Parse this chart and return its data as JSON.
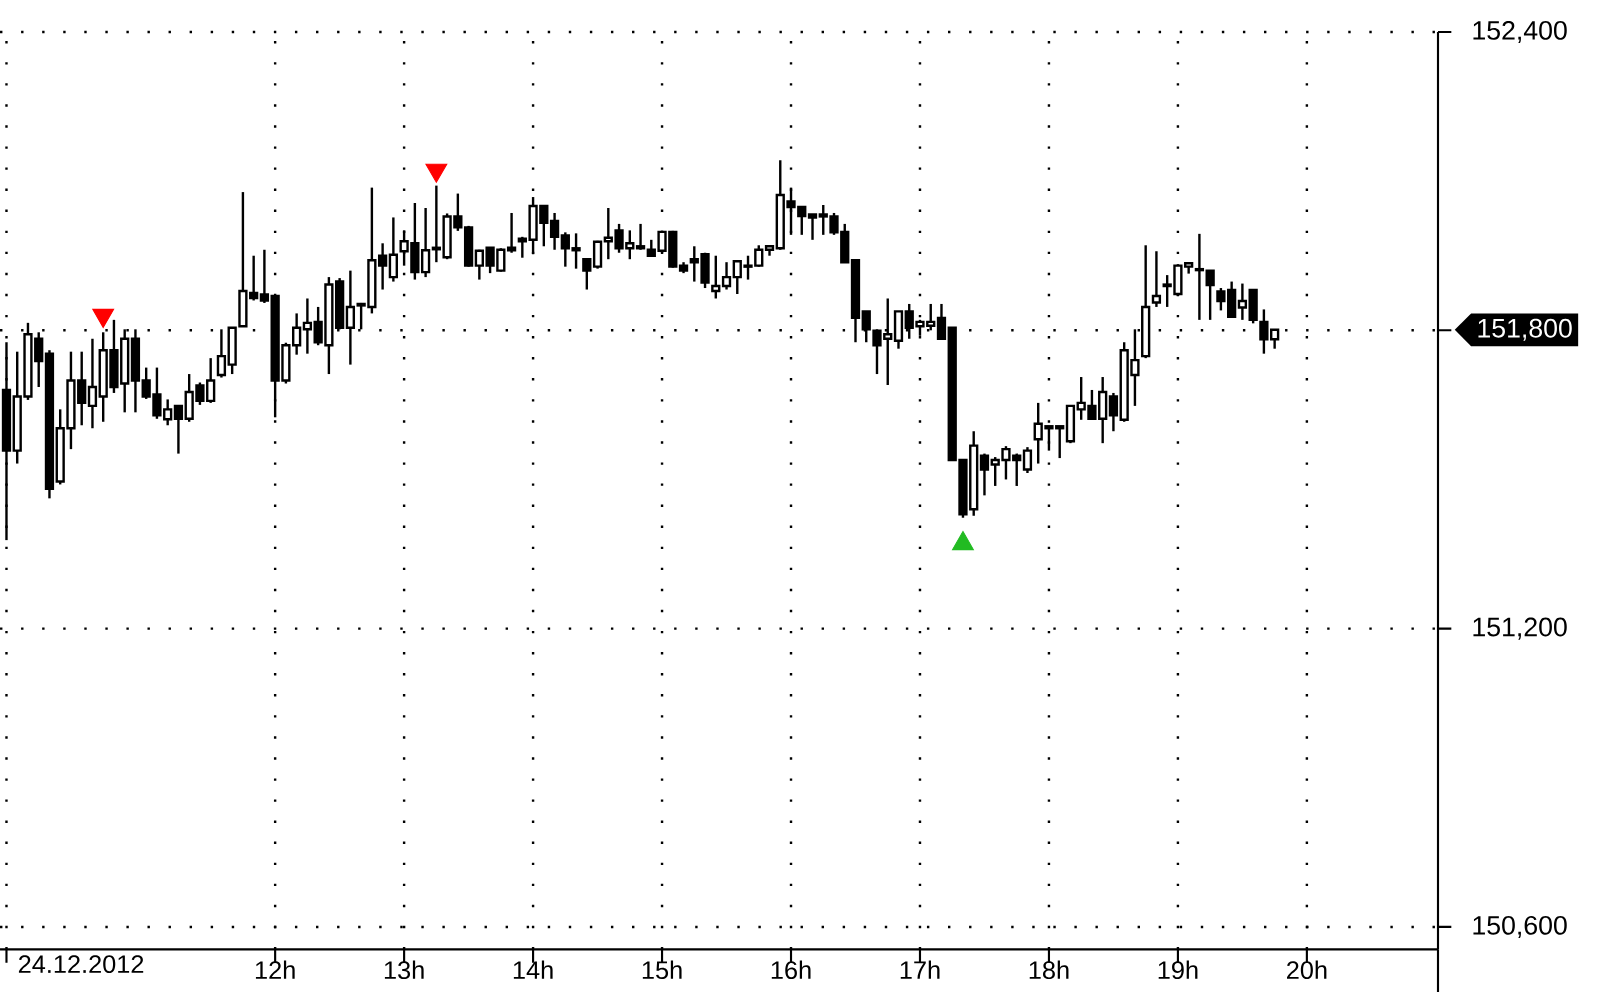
{
  "chart_data": {
    "type": "candlestick",
    "color": "#000000",
    "x": [
      "2012-12-24T09:55",
      "2012-12-24T10:00",
      "2012-12-24T10:05",
      "2012-12-24T10:10",
      "2012-12-24T10:15",
      "2012-12-24T10:20",
      "2012-12-24T10:25",
      "2012-12-24T10:30",
      "2012-12-24T10:35",
      "2012-12-24T10:40",
      "2012-12-24T10:45",
      "2012-12-24T10:50",
      "2012-12-24T10:55",
      "2012-12-24T11:00",
      "2012-12-24T11:05",
      "2012-12-24T11:10",
      "2012-12-24T11:15",
      "2012-12-24T11:20",
      "2012-12-24T11:25",
      "2012-12-24T11:30",
      "2012-12-24T11:35",
      "2012-12-24T11:40",
      "2012-12-24T11:45",
      "2012-12-24T11:50",
      "2012-12-24T11:55",
      "2012-12-24T12:00",
      "2012-12-24T12:05",
      "2012-12-24T12:10",
      "2012-12-24T12:15",
      "2012-12-24T12:20",
      "2012-12-24T12:25",
      "2012-12-24T12:30",
      "2012-12-24T12:35",
      "2012-12-24T12:40",
      "2012-12-24T12:45",
      "2012-12-24T12:50",
      "2012-12-24T12:55",
      "2012-12-24T13:00",
      "2012-12-24T13:05",
      "2012-12-24T13:10",
      "2012-12-24T13:15",
      "2012-12-24T13:20",
      "2012-12-24T13:25",
      "2012-12-24T13:30",
      "2012-12-24T13:35",
      "2012-12-24T13:40",
      "2012-12-24T13:45",
      "2012-12-24T13:50",
      "2012-12-24T13:55",
      "2012-12-24T14:00",
      "2012-12-24T14:05",
      "2012-12-24T14:10",
      "2012-12-24T14:15",
      "2012-12-24T14:20",
      "2012-12-24T14:25",
      "2012-12-24T14:30",
      "2012-12-24T14:35",
      "2012-12-24T14:40",
      "2012-12-24T14:45",
      "2012-12-24T14:50",
      "2012-12-24T14:55",
      "2012-12-24T15:00",
      "2012-12-24T15:05",
      "2012-12-24T15:10",
      "2012-12-24T15:15",
      "2012-12-24T15:20",
      "2012-12-24T15:25",
      "2012-12-24T15:30",
      "2012-12-24T15:35",
      "2012-12-24T15:40",
      "2012-12-24T15:45",
      "2012-12-24T15:50",
      "2012-12-24T15:55",
      "2012-12-24T16:00",
      "2012-12-24T16:05",
      "2012-12-24T16:10",
      "2012-12-24T16:15",
      "2012-12-24T16:20",
      "2012-12-24T16:25",
      "2012-12-24T16:30",
      "2012-12-24T16:35",
      "2012-12-24T16:40",
      "2012-12-24T16:45",
      "2012-12-24T16:50",
      "2012-12-24T16:55",
      "2012-12-24T17:00",
      "2012-12-24T17:05",
      "2012-12-24T17:10",
      "2012-12-24T17:15",
      "2012-12-24T17:20",
      "2012-12-24T17:25",
      "2012-12-24T17:30",
      "2012-12-24T17:35",
      "2012-12-24T17:40",
      "2012-12-24T17:45",
      "2012-12-24T17:50",
      "2012-12-24T17:55",
      "2012-12-24T18:00",
      "2012-12-24T18:05",
      "2012-12-24T18:10",
      "2012-12-24T18:15",
      "2012-12-24T18:20",
      "2012-12-24T18:25",
      "2012-12-24T18:30",
      "2012-12-24T18:35",
      "2012-12-24T18:40",
      "2012-12-24T18:45",
      "2012-12-24T18:50",
      "2012-12-24T18:55",
      "2012-12-24T19:00",
      "2012-12-24T19:05",
      "2012-12-24T19:10",
      "2012-12-24T19:15",
      "2012-12-24T19:20",
      "2012-12-24T19:25",
      "2012-12-24T19:30",
      "2012-12-24T19:35",
      "2012-12-24T19:40",
      "2012-12-24T19:45"
    ],
    "ohlc": [
      [
        151680,
        151776,
        151378,
        151558
      ],
      [
        151558,
        151757,
        151532,
        151667
      ],
      [
        151667,
        151815,
        151660,
        151792
      ],
      [
        151783,
        151796,
        151686,
        151738
      ],
      [
        151753,
        151760,
        151462,
        151481
      ],
      [
        151496,
        151641,
        151490,
        151603
      ],
      [
        151603,
        151757,
        151561,
        151699
      ],
      [
        151699,
        151757,
        151609,
        151654
      ],
      [
        151648,
        151783,
        151603,
        151686
      ],
      [
        151667,
        151796,
        151616,
        151760
      ],
      [
        151760,
        151821,
        151674,
        151686
      ],
      [
        151693,
        151802,
        151635,
        151783
      ],
      [
        151783,
        151802,
        151635,
        151699
      ],
      [
        151699,
        151725,
        151662,
        151667
      ],
      [
        151671,
        151725,
        151622,
        151629
      ],
      [
        151621,
        151661,
        151609,
        151641
      ],
      [
        151648,
        151648,
        151552,
        151622
      ],
      [
        151622,
        151712,
        151616,
        151676
      ],
      [
        151689,
        151695,
        151650,
        151658
      ],
      [
        151658,
        151744,
        151654,
        151699
      ],
      [
        151710,
        151802,
        151705,
        151748
      ],
      [
        151731,
        151805,
        151712,
        151805
      ],
      [
        151808,
        152078,
        151808,
        151879
      ],
      [
        151875,
        151950,
        151860,
        151865
      ],
      [
        151872,
        151962,
        151855,
        151860
      ],
      [
        151869,
        151869,
        151625,
        151699
      ],
      [
        151699,
        151775,
        151693,
        151770
      ],
      [
        151770,
        151834,
        151751,
        151805
      ],
      [
        151802,
        151864,
        151753,
        151815
      ],
      [
        151817,
        151847,
        151770,
        151776
      ],
      [
        151770,
        151907,
        151712,
        151892
      ],
      [
        151898,
        151905,
        151802,
        151805
      ],
      [
        151805,
        151920,
        151731,
        151847
      ],
      [
        151850,
        151855,
        151802,
        151853
      ],
      [
        151847,
        152087,
        151834,
        151941
      ],
      [
        151950,
        151975,
        151882,
        151930
      ],
      [
        151907,
        152027,
        151898,
        151952
      ],
      [
        151959,
        152001,
        151930,
        151979
      ],
      [
        151975,
        152056,
        151902,
        151917
      ],
      [
        151917,
        152046,
        151907,
        151961
      ],
      [
        151963,
        152091,
        151937,
        151966
      ],
      [
        151947,
        152035,
        151943,
        152029
      ],
      [
        152029,
        152075,
        152000,
        152007
      ],
      [
        152007,
        152010,
        151928,
        151930
      ],
      [
        151930,
        151962,
        151902,
        151960
      ],
      [
        151966,
        151966,
        151915,
        151930
      ],
      [
        151920,
        151965,
        151918,
        151962
      ],
      [
        151961,
        152036,
        151956,
        151966
      ],
      [
        151979,
        151988,
        151946,
        151984
      ],
      [
        151982,
        152068,
        151953,
        152050
      ],
      [
        152050,
        152052,
        151969,
        152016
      ],
      [
        152020,
        152036,
        151962,
        151988
      ],
      [
        151991,
        151997,
        151928,
        151965
      ],
      [
        151965,
        151995,
        151924,
        151961
      ],
      [
        151943,
        151945,
        151882,
        151920
      ],
      [
        151928,
        151980,
        151924,
        151978
      ],
      [
        151979,
        152046,
        151943,
        151986
      ],
      [
        152001,
        152014,
        151956,
        151965
      ],
      [
        151965,
        152001,
        151943,
        151975
      ],
      [
        151969,
        152014,
        151962,
        151965
      ],
      [
        151962,
        151982,
        151950,
        151950
      ],
      [
        151960,
        152000,
        151956,
        151998
      ],
      [
        151998,
        152000,
        151926,
        151928
      ],
      [
        151930,
        151937,
        151915,
        151920
      ],
      [
        151943,
        151969,
        151898,
        151937
      ],
      [
        151953,
        151956,
        151885,
        151896
      ],
      [
        151879,
        151950,
        151864,
        151889
      ],
      [
        151889,
        151937,
        151882,
        151907
      ],
      [
        151907,
        151939,
        151873,
        151939
      ],
      [
        151928,
        151950,
        151902,
        151930
      ],
      [
        151930,
        151971,
        151928,
        151962
      ],
      [
        151962,
        151971,
        151950,
        151969
      ],
      [
        151965,
        152142,
        151962,
        152072
      ],
      [
        152059,
        152087,
        151992,
        152048
      ],
      [
        152048,
        152048,
        151992,
        152030
      ],
      [
        152033,
        152033,
        151982,
        152027
      ],
      [
        152029,
        152052,
        151992,
        152033
      ],
      [
        152029,
        152036,
        151992,
        151997
      ],
      [
        151998,
        152014,
        151937,
        151937
      ],
      [
        151941,
        151941,
        151776,
        151825
      ],
      [
        151838,
        151838,
        151776,
        151802
      ],
      [
        151799,
        151802,
        151712,
        151770
      ],
      [
        151783,
        151864,
        151690,
        151792
      ],
      [
        151779,
        151838,
        151763,
        151838
      ],
      [
        151838,
        151853,
        151783,
        151805
      ],
      [
        151808,
        151821,
        151789,
        151817
      ],
      [
        151809,
        151853,
        151800,
        151817
      ],
      [
        151825,
        151853,
        151783,
        151783
      ],
      [
        151805,
        151805,
        151539,
        151539
      ],
      [
        151539,
        151539,
        151423,
        151430
      ],
      [
        151440,
        151597,
        151427,
        151568
      ],
      [
        151548,
        151552,
        151468,
        151520
      ],
      [
        151530,
        151545,
        151487,
        151539
      ],
      [
        151539,
        151567,
        151500,
        151561
      ],
      [
        151548,
        151552,
        151487,
        151539
      ],
      [
        151520,
        151565,
        151513,
        151558
      ],
      [
        151581,
        151654,
        151532,
        151612
      ],
      [
        151607,
        151607,
        151558,
        151603
      ],
      [
        151603,
        151607,
        151543,
        151607
      ],
      [
        151577,
        151648,
        151573,
        151648
      ],
      [
        151641,
        151706,
        151620,
        151654
      ],
      [
        151648,
        151680,
        151622,
        151622
      ],
      [
        151622,
        151706,
        151573,
        151676
      ],
      [
        151667,
        151674,
        151597,
        151629
      ],
      [
        151620,
        151776,
        151616,
        151760
      ],
      [
        151710,
        151802,
        151648,
        151740
      ],
      [
        151748,
        151971,
        151744,
        151847
      ],
      [
        151856,
        151959,
        151847,
        151869
      ],
      [
        151889,
        151911,
        151847,
        151892
      ],
      [
        151873,
        151933,
        151869,
        151930
      ],
      [
        151928,
        151936,
        151914,
        151935
      ],
      [
        151921,
        151994,
        151821,
        151923
      ],
      [
        151920,
        151920,
        151821,
        151891
      ],
      [
        151878,
        151885,
        151840,
        151859
      ],
      [
        151881,
        151898,
        151827,
        151827
      ],
      [
        151846,
        151894,
        151821,
        151859
      ],
      [
        151881,
        151881,
        151814,
        151821
      ],
      [
        151817,
        151842,
        151753,
        151782
      ],
      [
        151782,
        151801,
        151763,
        151801
      ]
    ],
    "series": [
      {
        "type": "scatter",
        "marker": "triangle",
        "color": "#ff0000",
        "x": [
          "2012-12-24T10:40",
          "2012-12-24T13:15"
        ],
        "values": [
          151830,
          152122
        ]
      },
      {
        "type": "scatter",
        "marker": "triangle",
        "color": "#22bb22",
        "x": [
          "2012-12-24T17:20"
        ],
        "values": [
          151371
        ]
      }
    ],
    "xlim": [
      "2012-12-24T09:52",
      "2012-12-24T21:01"
    ],
    "xlabel": "24.12.2012",
    "xticks": [
      {
        "value": "2012-12-24T09:55",
        "label": null
      },
      {
        "value": "2012-12-24T12:00",
        "label": "12h"
      },
      {
        "value": "2012-12-24T13:00",
        "label": "13h"
      },
      {
        "value": "2012-12-24T14:00",
        "label": "14h"
      },
      {
        "value": "2012-12-24T15:00",
        "label": "15h"
      },
      {
        "value": "2012-12-24T16:00",
        "label": "16h"
      },
      {
        "value": "2012-12-24T17:00",
        "label": "17h"
      },
      {
        "value": "2012-12-24T18:00",
        "label": "18h"
      },
      {
        "value": "2012-12-24T19:00",
        "label": "19h"
      },
      {
        "value": "2012-12-24T20:00",
        "label": "20h"
      }
    ],
    "ylim": [
      150555,
      152400
    ],
    "yticks": [
      {
        "value": 150600,
        "label": "150,600"
      },
      {
        "value": 151200,
        "label": "151,200"
      },
      {
        "value": 151800,
        "label": null
      },
      {
        "value": 152400,
        "label": "152,400"
      }
    ],
    "grid": true,
    "annotations": [
      "151,800"
    ]
  }
}
